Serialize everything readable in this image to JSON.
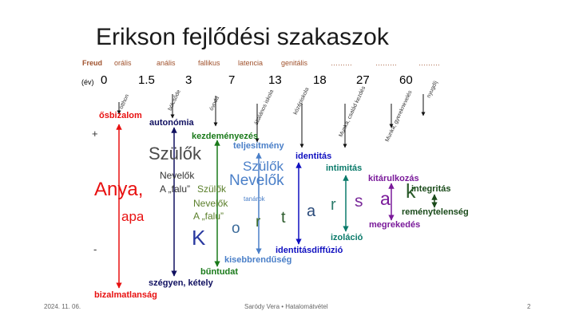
{
  "title": "Erikson fejlődési szakaszok",
  "freud": {
    "label": "Freud",
    "stages": [
      "orális",
      "anális",
      "fallikus",
      "latencia",
      "genitális",
      "………",
      "………",
      "………"
    ]
  },
  "ages": {
    "label": "(év)",
    "values": [
      "0",
      "1.5",
      "3",
      "7",
      "13",
      "18",
      "27",
      "60"
    ]
  },
  "institutions": [
    "otthon",
    "bölcsőde",
    "óvoda",
    "általános iskola",
    "középiskola",
    "Munka, család kezdés",
    "Munka, gyereknevelés",
    "nyugdíj"
  ],
  "signs": {
    "plus": "+",
    "minus": "-"
  },
  "positive": [
    "ősbizalom",
    "autonómia",
    "kezdeményezés",
    "teljesítmény",
    "identitás",
    "intimitás",
    "kitárulkozás",
    "integritás"
  ],
  "negative": [
    "bizalmatlanság",
    "szégyen, kétely",
    "bűntudat",
    "kisebbrendűség",
    "identitásdiffúzió",
    "izoláció",
    "megrekedés",
    "reménytelenség"
  ],
  "figures": {
    "anya": "Anya,",
    "apa": "apa",
    "szulok1": "Szülők",
    "nevelok1": "Nevelők",
    "falu1": "A „falu”",
    "szulok2": "Szülők",
    "nevelok2": "Nevelők",
    "falu2": "A „falu”",
    "szulok3": "Szülők",
    "nevelok3": "Nevelők",
    "tanarok": "tanárok",
    "kortarsak": [
      "K",
      "o",
      "r",
      "t",
      "a",
      "r",
      "s",
      "a",
      "k"
    ]
  },
  "footer": {
    "date": "2024. 11. 06.",
    "author": "Saródy Vera • Hatalomátvétel",
    "page": "2"
  },
  "colors": {
    "red": "#e81010",
    "navy": "#101060",
    "green": "#1a7a1a",
    "blue": "#4a7fc8",
    "darkblue": "#1010c0",
    "teal": "#0a7a6a",
    "purple": "#7a1a9a",
    "darkgreen": "#1a4a1a"
  }
}
